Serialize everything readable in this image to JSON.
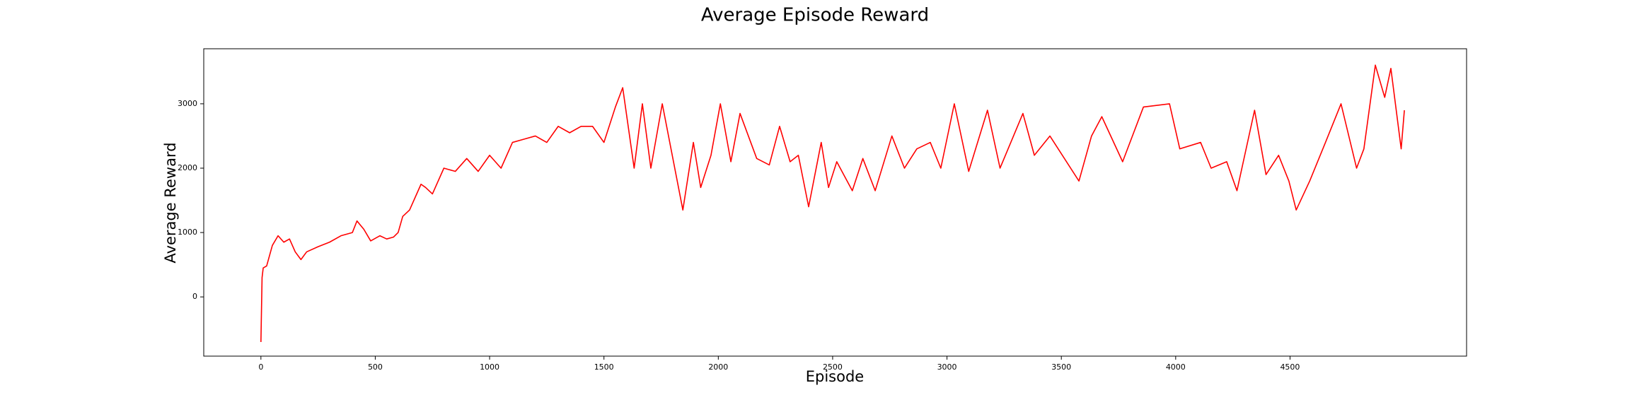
{
  "chart_data": {
    "type": "line",
    "title": "Average Episode Reward",
    "x_label": "Episode",
    "y_label": "Average Reward",
    "x": [
      0,
      5,
      10,
      25,
      50,
      75,
      100,
      125,
      150,
      175,
      200,
      250,
      300,
      350,
      400,
      420,
      450,
      480,
      520,
      550,
      580,
      600,
      620,
      650,
      700,
      720,
      750,
      800,
      850,
      900,
      950,
      1000,
      1050,
      1100,
      1150,
      1200,
      1250,
      1300,
      1350,
      1400,
      1450,
      1500,
      1550,
      1582,
      1632,
      1668,
      1705,
      1755,
      1845,
      1891,
      1923,
      1968,
      2009,
      2055,
      2095,
      2168,
      2223,
      2268,
      2314,
      2350,
      2395,
      2450,
      2482,
      2518,
      2586,
      2632,
      2686,
      2759,
      2814,
      2868,
      2927,
      2973,
      3032,
      3095,
      3177,
      3232,
      3332,
      3382,
      3450,
      3577,
      3632,
      3677,
      3768,
      3859,
      3973,
      4018,
      4109,
      4155,
      4223,
      4268,
      4345,
      4395,
      4450,
      4495,
      4527,
      4586,
      4655,
      4723,
      4791,
      4823,
      4873,
      4914,
      4941,
      4986,
      5000
    ],
    "series": [
      {
        "name": "Average Reward",
        "color": "#ff0000",
        "values": [
          -700,
          300,
          450,
          480,
          800,
          950,
          850,
          900,
          700,
          580,
          700,
          780,
          850,
          950,
          1000,
          1180,
          1050,
          870,
          950,
          900,
          930,
          1000,
          1250,
          1350,
          1750,
          1700,
          1600,
          2000,
          1950,
          2150,
          1950,
          2200,
          2000,
          2400,
          2450,
          2500,
          2400,
          2650,
          2550,
          2650,
          2650,
          2400,
          2950,
          3250,
          2000,
          3000,
          2000,
          3000,
          1350,
          2400,
          1700,
          2200,
          3000,
          2100,
          2850,
          2150,
          2050,
          2650,
          2100,
          2200,
          1400,
          2400,
          1700,
          2100,
          1650,
          2150,
          1650,
          2500,
          2000,
          2300,
          2400,
          2000,
          3000,
          1950,
          2900,
          2000,
          2850,
          2200,
          2500,
          1800,
          2500,
          2800,
          2100,
          2950,
          3000,
          2300,
          2400,
          2000,
          2100,
          1650,
          2900,
          1900,
          2200,
          1800,
          1350,
          1800,
          2400,
          3000,
          2000,
          2300,
          3600,
          3100,
          3550,
          2300,
          2900
        ]
      }
    ],
    "xlim": [
      -250,
      5272
    ],
    "ylim": [
      -920,
      3855
    ],
    "xticks": [
      0,
      500,
      1000,
      1500,
      2000,
      2500,
      3000,
      3500,
      4000,
      4500
    ],
    "yticks": [
      0,
      1000,
      2000,
      3000
    ],
    "grid": false
  }
}
